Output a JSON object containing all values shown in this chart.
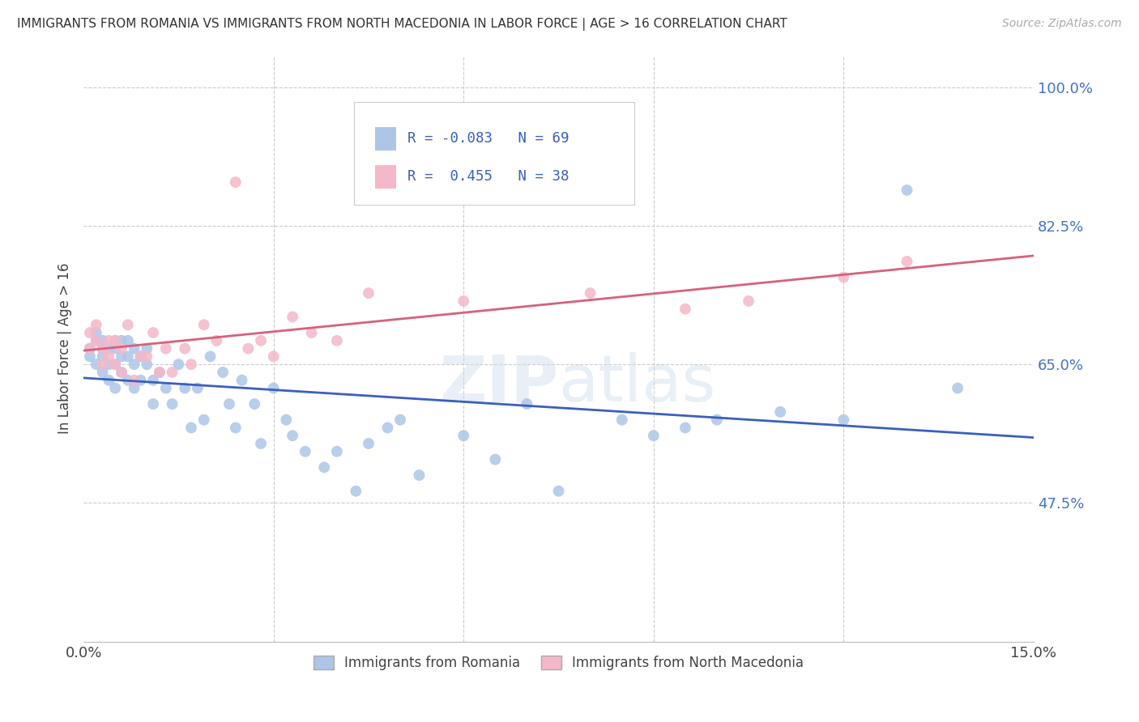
{
  "title": "IMMIGRANTS FROM ROMANIA VS IMMIGRANTS FROM NORTH MACEDONIA IN LABOR FORCE | AGE > 16 CORRELATION CHART",
  "source": "Source: ZipAtlas.com",
  "ylabel": "In Labor Force | Age > 16",
  "xlim": [
    0.0,
    0.15
  ],
  "ylim": [
    0.3,
    1.04
  ],
  "xticks": [
    0.0,
    0.03,
    0.06,
    0.09,
    0.12,
    0.15
  ],
  "xticklabels": [
    "0.0%",
    "",
    "",
    "",
    "",
    "15.0%"
  ],
  "yticks": [
    0.3,
    0.475,
    0.65,
    0.825,
    1.0
  ],
  "yticklabels": [
    "",
    "47.5%",
    "65.0%",
    "82.5%",
    "100.0%"
  ],
  "romania_R": -0.083,
  "romania_N": 69,
  "macedonia_R": 0.455,
  "macedonia_N": 38,
  "romania_color": "#adc6e8",
  "macedonia_color": "#f5b8c8",
  "romania_line_color": "#3a5fbf",
  "macedonia_line_color": "#d9607a",
  "background_color": "#ffffff",
  "grid_color": "#cccccc",
  "romania_x": [
    0.001,
    0.001,
    0.002,
    0.002,
    0.002,
    0.003,
    0.003,
    0.003,
    0.003,
    0.004,
    0.004,
    0.004,
    0.005,
    0.005,
    0.005,
    0.005,
    0.006,
    0.006,
    0.006,
    0.007,
    0.007,
    0.007,
    0.008,
    0.008,
    0.008,
    0.009,
    0.009,
    0.01,
    0.01,
    0.011,
    0.011,
    0.012,
    0.013,
    0.014,
    0.015,
    0.016,
    0.017,
    0.018,
    0.019,
    0.02,
    0.022,
    0.023,
    0.024,
    0.025,
    0.027,
    0.028,
    0.03,
    0.032,
    0.033,
    0.035,
    0.038,
    0.04,
    0.043,
    0.045,
    0.048,
    0.05,
    0.053,
    0.06,
    0.065,
    0.07,
    0.075,
    0.085,
    0.09,
    0.095,
    0.1,
    0.11,
    0.12,
    0.13,
    0.138
  ],
  "romania_y": [
    0.67,
    0.66,
    0.69,
    0.68,
    0.65,
    0.68,
    0.67,
    0.66,
    0.64,
    0.67,
    0.65,
    0.63,
    0.68,
    0.67,
    0.65,
    0.62,
    0.68,
    0.66,
    0.64,
    0.68,
    0.66,
    0.63,
    0.67,
    0.65,
    0.62,
    0.66,
    0.63,
    0.67,
    0.65,
    0.63,
    0.6,
    0.64,
    0.62,
    0.6,
    0.65,
    0.62,
    0.57,
    0.62,
    0.58,
    0.66,
    0.64,
    0.6,
    0.57,
    0.63,
    0.6,
    0.55,
    0.62,
    0.58,
    0.56,
    0.54,
    0.52,
    0.54,
    0.49,
    0.55,
    0.57,
    0.58,
    0.51,
    0.56,
    0.53,
    0.6,
    0.49,
    0.58,
    0.56,
    0.57,
    0.58,
    0.59,
    0.58,
    0.87,
    0.62
  ],
  "macedonia_x": [
    0.001,
    0.001,
    0.002,
    0.002,
    0.003,
    0.003,
    0.004,
    0.004,
    0.005,
    0.005,
    0.006,
    0.006,
    0.007,
    0.008,
    0.009,
    0.01,
    0.011,
    0.012,
    0.013,
    0.014,
    0.016,
    0.017,
    0.019,
    0.021,
    0.024,
    0.026,
    0.028,
    0.03,
    0.033,
    0.036,
    0.04,
    0.045,
    0.06,
    0.08,
    0.095,
    0.105,
    0.12,
    0.13
  ],
  "macedonia_y": [
    0.69,
    0.67,
    0.7,
    0.68,
    0.67,
    0.65,
    0.68,
    0.66,
    0.68,
    0.65,
    0.67,
    0.64,
    0.7,
    0.63,
    0.66,
    0.66,
    0.69,
    0.64,
    0.67,
    0.64,
    0.67,
    0.65,
    0.7,
    0.68,
    0.88,
    0.67,
    0.68,
    0.66,
    0.71,
    0.69,
    0.68,
    0.74,
    0.73,
    0.74,
    0.72,
    0.73,
    0.76,
    0.78
  ]
}
